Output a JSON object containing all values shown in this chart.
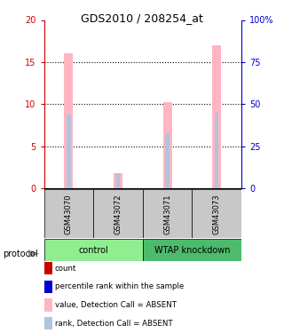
{
  "title": "GDS2010 / 208254_at",
  "samples": [
    "GSM43070",
    "GSM43072",
    "GSM43071",
    "GSM43073"
  ],
  "ylim_left": [
    0,
    20
  ],
  "ylim_right": [
    0,
    100
  ],
  "yticks_left": [
    0,
    5,
    10,
    15,
    20
  ],
  "yticks_right": [
    0,
    25,
    50,
    75,
    100
  ],
  "pink_bar_values": [
    16.0,
    1.8,
    10.2,
    17.0
  ],
  "blue_bar_values": [
    43.5,
    9.0,
    32.5,
    45.0
  ],
  "pink_color": "#ffb6c1",
  "light_blue_color": "#b0c4de",
  "left_axis_color": "#cc0000",
  "right_axis_color": "#0000cc",
  "sample_bg_color": "#c8c8c8",
  "control_color": "#90ee90",
  "wtap_color": "#4cbb6c",
  "legend_items": [
    {
      "color": "#cc0000",
      "label": "count"
    },
    {
      "color": "#0000cc",
      "label": "percentile rank within the sample"
    },
    {
      "color": "#ffb6c1",
      "label": "value, Detection Call = ABSENT"
    },
    {
      "color": "#b0c4de",
      "label": "rank, Detection Call = ABSENT"
    }
  ]
}
